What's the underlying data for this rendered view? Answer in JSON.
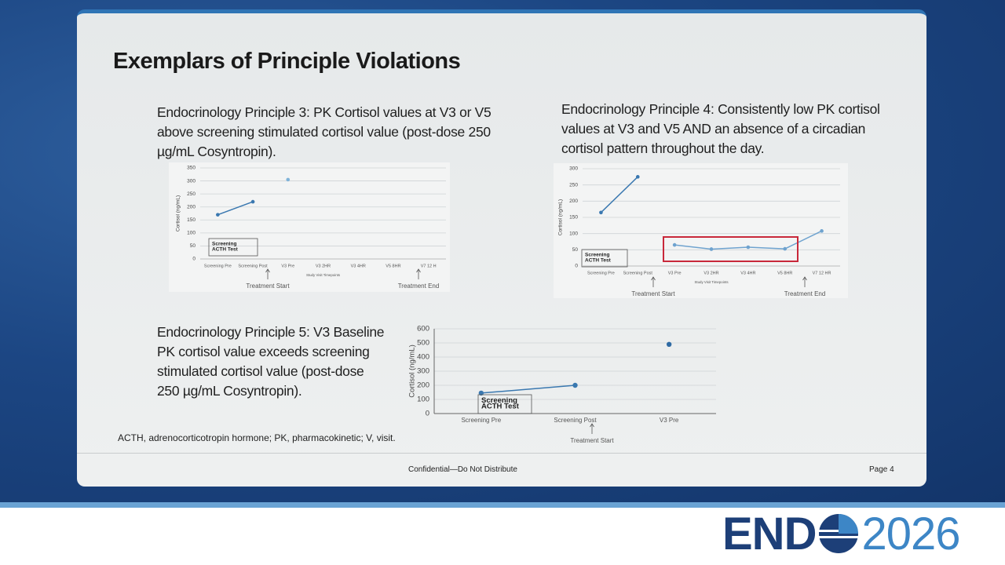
{
  "slide": {
    "title": "Exemplars of Principle Violations",
    "blocks": [
      "Endocrinology Principle 3: PK Cortisol values at V3 or V5 above screening stimulated cortisol value (post-dose 250 µg/mL Cosyntropin).",
      "Endocrinology Principle 4: Consistently low PK cortisol values at V3 and V5 AND an absence of a circadian cortisol pattern throughout the day.",
      "Endocrinology Principle 5: V3 Baseline PK cortisol value exceeds screening stimulated cortisol value (post-dose 250 µg/mL Cosyntropin)."
    ],
    "footnote": "ACTH, adrenocorticotropin hormone; PK, pharmacokinetic; V, visit.",
    "footer": "Confidential—Do Not Distribute",
    "page": "Page 4",
    "logo": {
      "left": "END",
      "right": "2026"
    }
  },
  "chart_data": [
    {
      "type": "line",
      "categories": [
        "Screening Pre",
        "Screening Post",
        "V3 Pre",
        "V3 2HR",
        "V3 4HR",
        "V5 8HR",
        "V7 12 H"
      ],
      "series": [
        {
          "color": "#3a78b0",
          "values": [
            170,
            220,
            null,
            null,
            null,
            null,
            null
          ]
        },
        {
          "color": "#7fb3d9",
          "values": [
            null,
            null,
            305,
            null,
            null,
            null,
            null
          ]
        }
      ],
      "ylim": [
        0,
        350
      ],
      "yticks": [
        0,
        50,
        100,
        150,
        200,
        250,
        300,
        350
      ],
      "grid": true,
      "ylabel": "Cortisol (ng/mL)",
      "xlabel": "Study Visit Timepoints",
      "box_text": [
        "Screening",
        "ACTH Test"
      ],
      "start_text": "Treatment Start",
      "end_text": "Treatment End"
    },
    {
      "type": "line",
      "categories": [
        "Screening Pre",
        "Screening Post",
        "V3 Pre",
        "V3 2HR",
        "V3 4HR",
        "V5 8HR",
        "V7 12 HR"
      ],
      "series": [
        {
          "color": "#3a78b0",
          "values": [
            165,
            275,
            null,
            null,
            null,
            null,
            null
          ]
        },
        {
          "color": "#6fa3cf",
          "values": [
            null,
            null,
            65,
            52,
            58,
            53,
            108
          ]
        }
      ],
      "ylim": [
        0,
        300
      ],
      "yticks": [
        0,
        50,
        100,
        150,
        200,
        250,
        300
      ],
      "grid": true,
      "ylabel": "Cortisol (ng/mL)",
      "xlabel": "Study Visit Timepoints",
      "box_text": [
        "Screening",
        "ACTH Test"
      ],
      "start_text": "Treatment Start",
      "end_text": "Treatment End",
      "highlight_color": "#c8283a"
    },
    {
      "type": "line",
      "categories": [
        "Screening Pre",
        "Screening Post",
        "V3 Pre"
      ],
      "series": [
        {
          "color": "#3a78b0",
          "values": [
            145,
            200,
            null
          ]
        },
        {
          "color": "#2f6aa3",
          "values": [
            null,
            null,
            490
          ]
        }
      ],
      "ylim": [
        0,
        600
      ],
      "yticks": [
        0,
        100,
        200,
        300,
        400,
        500,
        600
      ],
      "grid": true,
      "ylabel": "Cortisol (ng/mL)",
      "box_text": [
        "Screening",
        "ACTH Test"
      ],
      "start_text": "Treatment Start"
    }
  ]
}
